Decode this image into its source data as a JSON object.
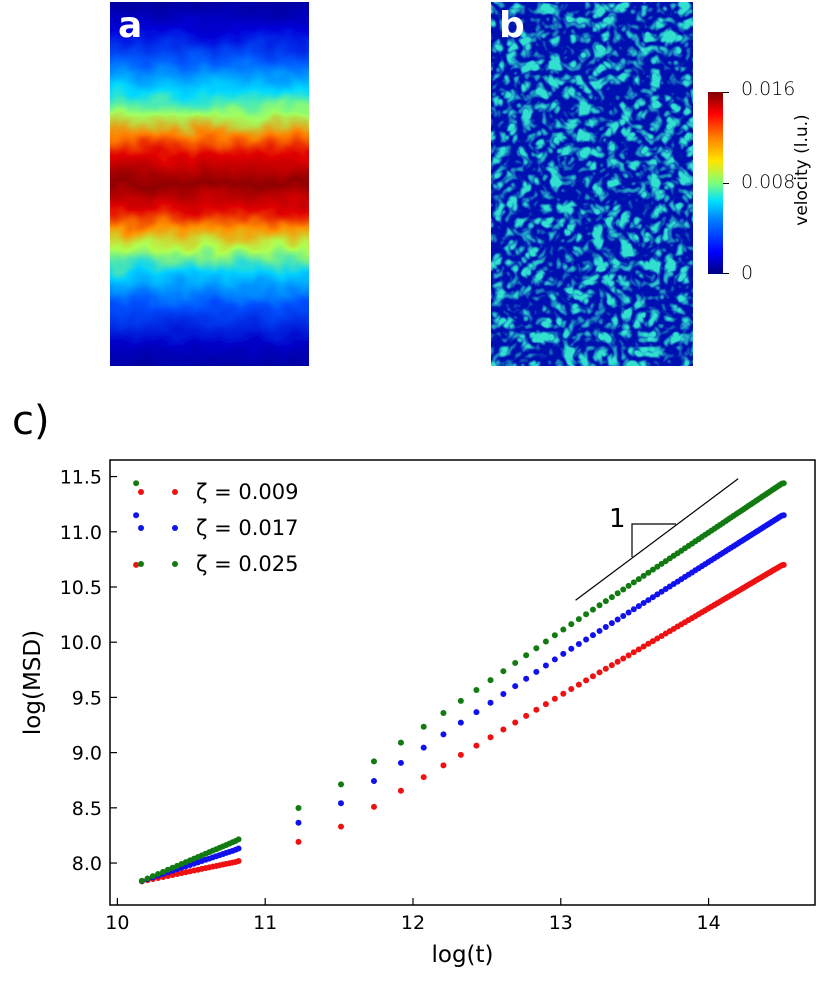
{
  "panels": {
    "a_label": "a",
    "b_label": "b",
    "c_label": "c)"
  },
  "colorbar": {
    "label": "velocity (l.u.)",
    "ticks": [
      "0.016",
      "0.008",
      "0"
    ],
    "range": [
      0,
      0.016
    ]
  },
  "colors": {
    "red": "#ee1111",
    "blue": "#1111ee",
    "green": "#117a11"
  },
  "chart_data": {
    "type": "scatter",
    "title": "",
    "xlabel": "log(t)",
    "ylabel": "log(MSD)",
    "xlim": [
      9.95,
      14.72
    ],
    "ylim": [
      7.62,
      11.65
    ],
    "xticks": [
      "10",
      "11",
      "12",
      "13",
      "14"
    ],
    "yticks": [
      "8.0",
      "8.5",
      "9.0",
      "9.5",
      "10.0",
      "10.5",
      "11.0",
      "11.5"
    ],
    "legend_position": "top-left",
    "series": [
      {
        "name": "ζ = 0.009",
        "color": "red",
        "x0": 10.15,
        "y0": 7.83,
        "y_at_10_8": 8.01,
        "y_at_11_2": 8.18,
        "y_at_11_5": 8.32,
        "y_at_13": 9.52,
        "y_end": 10.7
      },
      {
        "name": "ζ = 0.017",
        "color": "blue",
        "x0": 10.15,
        "y0": 7.83,
        "y_at_10_8": 8.12,
        "y_at_11_2": 8.35,
        "y_at_11_5": 8.53,
        "y_at_13": 9.88,
        "y_end": 11.15
      },
      {
        "name": "ζ = 0.025",
        "color": "green",
        "x0": 10.15,
        "y0": 7.83,
        "y_at_10_8": 8.2,
        "y_at_11_2": 8.48,
        "y_at_11_5": 8.7,
        "y_at_13": 10.1,
        "y_end": 11.44
      }
    ],
    "x_end": 14.5,
    "slope_annotation": {
      "text": "1",
      "x1": 13.1,
      "y1": 10.38,
      "x2": 14.2,
      "y2": 11.48
    }
  }
}
